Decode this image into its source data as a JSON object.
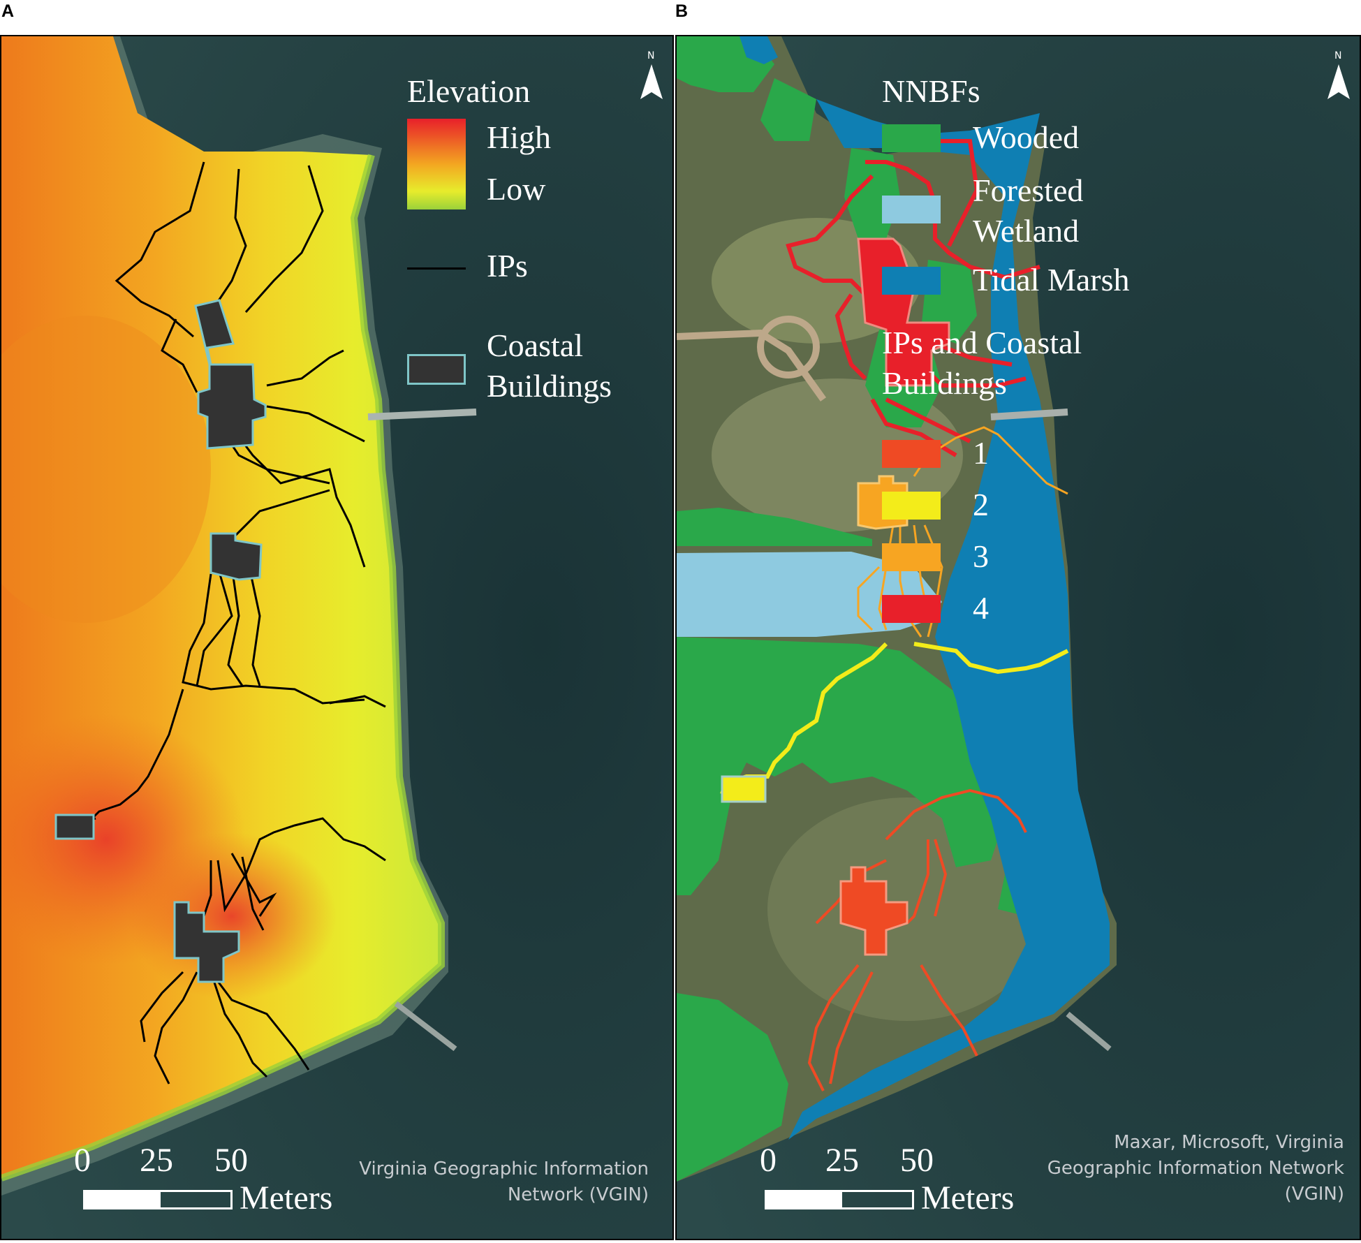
{
  "panel_a": {
    "letter": "A",
    "legend": {
      "title": "Elevation",
      "gradient_high": "High",
      "gradient_low": "Low",
      "ips_label": "IPs",
      "buildings_label_1": "Coastal",
      "buildings_label_2": "Buildings"
    },
    "north_label": "N",
    "scale": {
      "ticks": [
        "0",
        "25",
        "50"
      ],
      "unit": "Meters"
    },
    "credit_line1": "Virginia Geographic Information",
    "credit_line2": "Network (VGIN)"
  },
  "panel_b": {
    "letter": "B",
    "legend": {
      "title": "NNBFs",
      "items": [
        {
          "label": "Wooded",
          "color": "#2aa84a"
        },
        {
          "label_line1": "Forested",
          "label_line2": "Wetland",
          "color": "#8ecae0"
        },
        {
          "label": "Tidal Marsh",
          "color": "#0f7fb3"
        }
      ],
      "ips_title_1": "IPs and Coastal",
      "ips_title_2": "Buildings",
      "ips_items": [
        {
          "label": "1",
          "color": "#ef4a24"
        },
        {
          "label": "2",
          "color": "#f3ec1a"
        },
        {
          "label": "3",
          "color": "#f7a522"
        },
        {
          "label": "4",
          "color": "#e8202a"
        }
      ]
    },
    "north_label": "N",
    "scale": {
      "ticks": [
        "0",
        "25",
        "50"
      ],
      "unit": "Meters"
    },
    "credit_line1": "Maxar, Microsoft, Virginia",
    "credit_line2": "Geographic Information Network",
    "credit_line3": "(VGIN)"
  },
  "colors": {
    "water": "#1e3a3e",
    "elevation_high": "#e8202a",
    "elevation_mid": "#f2a21c",
    "elevation_low": "#e6ee2a",
    "elevation_low_edge": "#9bd13a",
    "building_fill": "#333333",
    "building_outline": "#7fc6c8",
    "ip_line": "#000000"
  }
}
